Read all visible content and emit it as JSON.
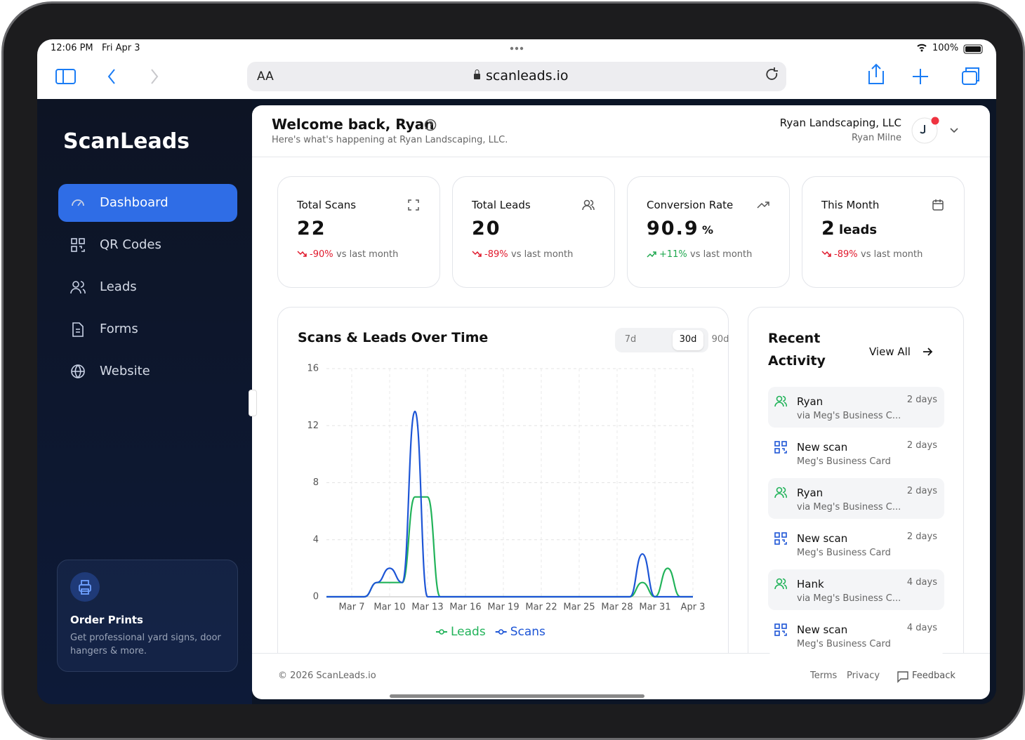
{
  "status_bar": {
    "time": "12:06 PM",
    "date": "Fri Apr 3",
    "battery": "100%"
  },
  "browser": {
    "text_size": "AA",
    "url": "scanleads.io"
  },
  "sidebar": {
    "brand": "ScanLeads",
    "nav": [
      "Dashboard",
      "QR Codes",
      "Leads",
      "Forms",
      "Website"
    ],
    "active": 0,
    "promo": {
      "title": "Order Prints",
      "text": "Get professional yard signs, door hangers & more."
    }
  },
  "header": {
    "title": "Welcome back, Ryan",
    "subtitle": "Here's what's happening at Ryan Landscaping, LLC.",
    "company": "Ryan Landscaping, LLC",
    "user": "Ryan Milne"
  },
  "stats": [
    {
      "title": "Total Scans",
      "value": "22",
      "change": "-90%",
      "change_text": "vs last month",
      "trend": "down"
    },
    {
      "title": "Total Leads",
      "value": "20",
      "change": "-89%",
      "change_text": "vs last month",
      "trend": "down"
    },
    {
      "title": "Conversion Rate",
      "value": "90.9",
      "unit": "%",
      "change": "+11%",
      "change_text": "vs last month",
      "trend": "up"
    },
    {
      "title": "This Month",
      "value": "2",
      "unit": "leads",
      "change": "-89%",
      "change_text": "vs last month",
      "trend": "down"
    }
  ],
  "chart_data": {
    "type": "line",
    "title": "Scans & Leads Over Time",
    "ranges": [
      "7d",
      "30d",
      "90d"
    ],
    "selected_range": 1,
    "categories": [
      null,
      null,
      "Mar 7",
      null,
      null,
      "Mar 10",
      null,
      null,
      "Mar 13",
      null,
      null,
      "Mar 16",
      null,
      null,
      "Mar 19",
      null,
      null,
      "Mar 22",
      null,
      null,
      "Mar 25",
      null,
      null,
      "Mar 28",
      null,
      null,
      "Mar 31",
      null,
      null,
      "Apr 3"
    ],
    "series": [
      {
        "name": "Leads",
        "color": "#22b35a",
        "values": [
          0,
          0,
          0,
          0,
          1,
          1,
          1,
          7,
          7,
          0,
          0,
          0,
          0,
          0,
          0,
          0,
          0,
          0,
          0,
          0,
          0,
          0,
          0,
          0,
          0,
          1,
          0,
          2,
          0,
          0
        ]
      },
      {
        "name": "Scans",
        "color": "#1d55d6",
        "values": [
          0,
          0,
          0,
          0,
          1,
          2,
          1,
          13,
          0,
          0,
          0,
          0,
          0,
          0,
          0,
          0,
          0,
          0,
          0,
          0,
          0,
          0,
          0,
          0,
          0,
          3,
          0,
          0,
          0,
          0
        ]
      }
    ],
    "ylim": [
      0,
      16
    ],
    "yticks": [
      0,
      4,
      8,
      12,
      16
    ],
    "grid": true
  },
  "activity": {
    "title": "Recent Activity",
    "view_all": "View All",
    "items": [
      {
        "kind": "lead",
        "name": "Ryan",
        "detail": "via Meg's Business C...",
        "time": "2 days"
      },
      {
        "kind": "scan",
        "name": "New scan",
        "detail": "Meg's Business Card",
        "time": "2 days"
      },
      {
        "kind": "lead",
        "name": "Ryan",
        "detail": "via Meg's Business C...",
        "time": "2 days"
      },
      {
        "kind": "scan",
        "name": "New scan",
        "detail": "Meg's Business Card",
        "time": "2 days"
      },
      {
        "kind": "lead",
        "name": "Hank",
        "detail": "via Meg's Business C...",
        "time": "4 days"
      },
      {
        "kind": "scan",
        "name": "New scan",
        "detail": "Meg's Business Card",
        "time": "4 days"
      }
    ]
  },
  "footer": {
    "copyright": "© 2026 ScanLeads.io",
    "links": [
      "Terms",
      "Privacy",
      "Feedback"
    ]
  }
}
